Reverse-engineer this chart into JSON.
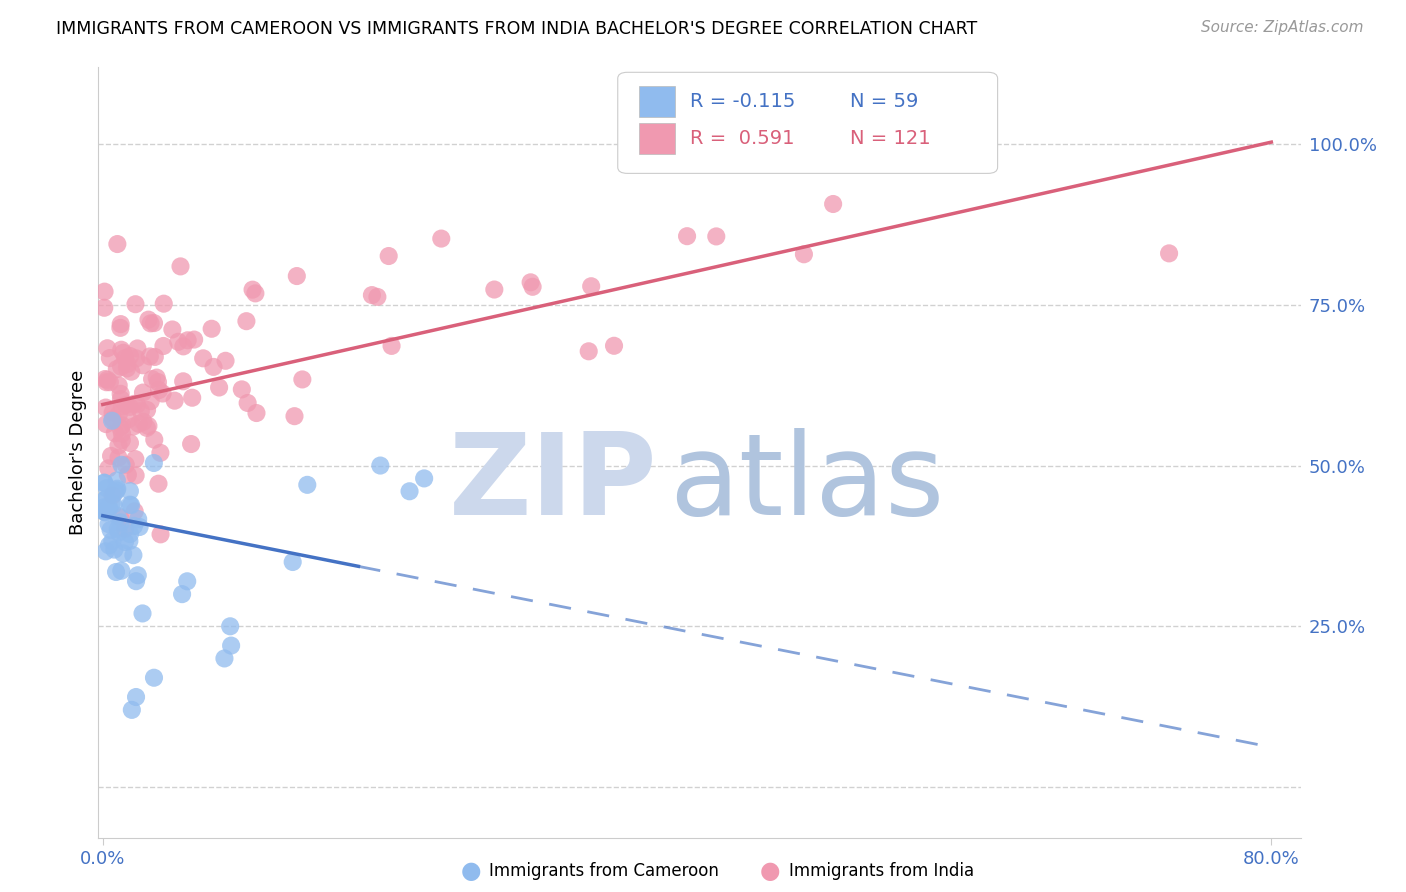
{
  "title": "IMMIGRANTS FROM CAMEROON VS IMMIGRANTS FROM INDIA BACHELOR'S DEGREE CORRELATION CHART",
  "source": "Source: ZipAtlas.com",
  "ylabel": "Bachelor's Degree",
  "xlim": [
    -0.003,
    0.82
  ],
  "ylim": [
    -0.08,
    1.12
  ],
  "yticks": [
    0.0,
    0.25,
    0.5,
    0.75,
    1.0
  ],
  "ytick_labels": [
    "",
    "25.0%",
    "50.0%",
    "75.0%",
    "100.0%"
  ],
  "cameroon_R": -0.115,
  "cameroon_N": 59,
  "india_R": 0.591,
  "india_N": 121,
  "cameroon_color": "#90bbee",
  "india_color": "#f099b0",
  "cameroon_line_color": "#4472c4",
  "india_line_color": "#d9607a",
  "axis_color": "#4472c4",
  "grid_color": "#cccccc",
  "watermark_zip_color": "#ccd8ec",
  "watermark_atlas_color": "#b0c4de",
  "background_color": "#ffffff",
  "india_line_intercept": 0.595,
  "india_line_slope": 0.51,
  "cameroon_line_intercept": 0.422,
  "cameroon_line_slope": -0.45
}
